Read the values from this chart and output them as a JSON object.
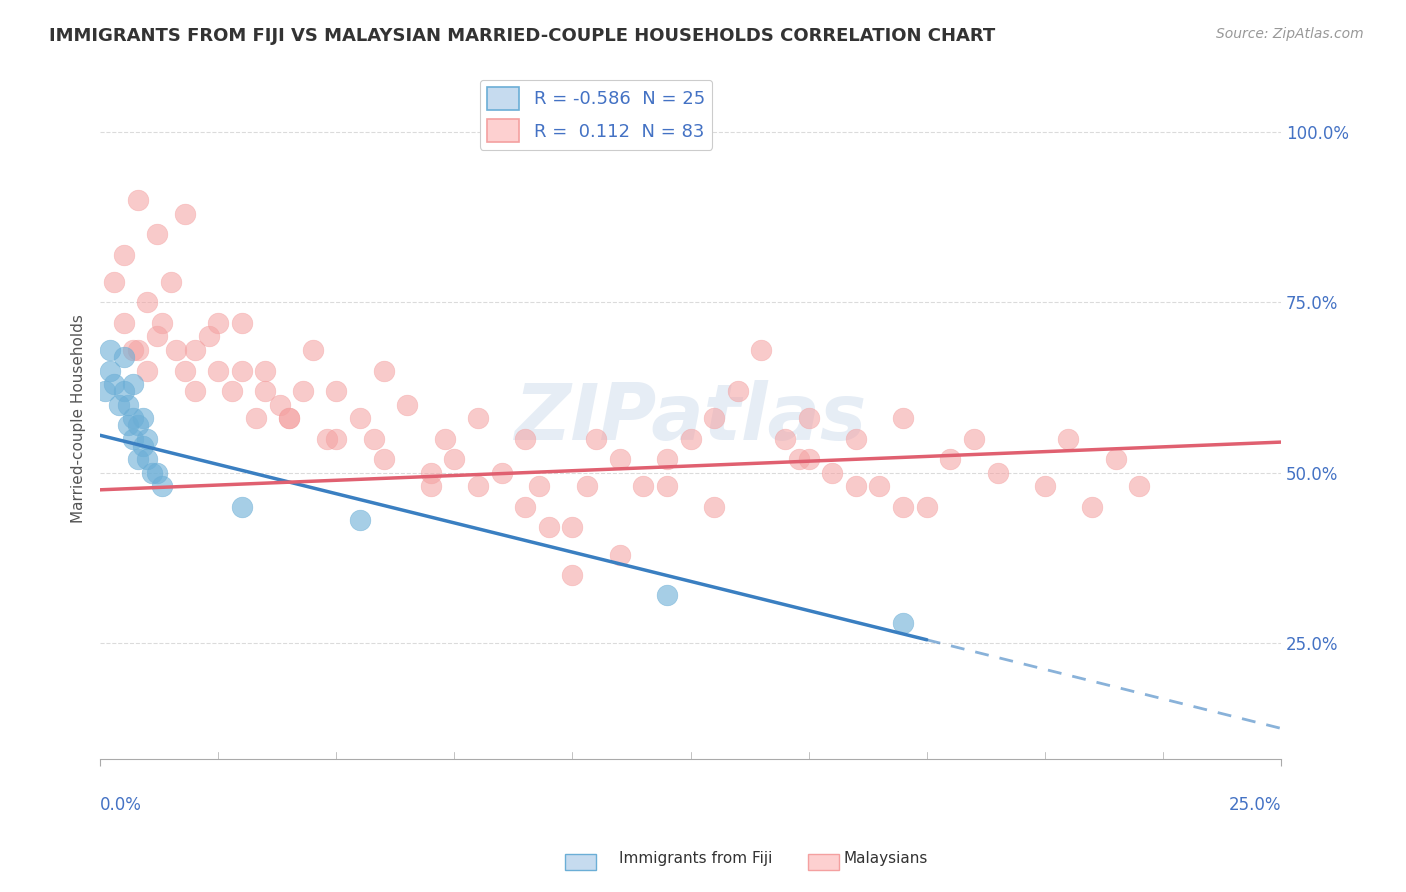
{
  "title": "IMMIGRANTS FROM FIJI VS MALAYSIAN MARRIED-COUPLE HOUSEHOLDS CORRELATION CHART",
  "source": "Source: ZipAtlas.com",
  "ylabel": "Married-couple Households",
  "ylabel_ticks": [
    "100.0%",
    "75.0%",
    "50.0%",
    "25.0%"
  ],
  "ylabel_tick_vals": [
    1.0,
    0.75,
    0.5,
    0.25
  ],
  "xlim": [
    0.0,
    0.25
  ],
  "ylim": [
    0.08,
    1.08
  ],
  "fiji_color": "#6baed6",
  "fiji_color_light": "#c6dbef",
  "malaysia_color": "#f4a0a0",
  "malaysia_color_light": "#fdd0d0",
  "trend_fiji_color": "#3a7fc1",
  "trend_malaysia_color": "#e06070",
  "watermark": "ZIPatlas",
  "background_color": "#ffffff",
  "grid_color": "#cccccc",
  "title_color": "#333333",
  "axis_color": "#4472c4",
  "tick_color": "#4472c4",
  "fiji_x": [
    0.001,
    0.002,
    0.002,
    0.003,
    0.004,
    0.005,
    0.005,
    0.006,
    0.006,
    0.007,
    0.007,
    0.007,
    0.008,
    0.008,
    0.009,
    0.009,
    0.01,
    0.01,
    0.011,
    0.012,
    0.013,
    0.03,
    0.055,
    0.12,
    0.17
  ],
  "fiji_y": [
    0.62,
    0.65,
    0.68,
    0.63,
    0.6,
    0.67,
    0.62,
    0.57,
    0.6,
    0.63,
    0.58,
    0.55,
    0.57,
    0.52,
    0.58,
    0.54,
    0.55,
    0.52,
    0.5,
    0.5,
    0.48,
    0.45,
    0.43,
    0.32,
    0.28
  ],
  "malaysia_x": [
    0.003,
    0.005,
    0.008,
    0.01,
    0.013,
    0.016,
    0.018,
    0.02,
    0.023,
    0.025,
    0.028,
    0.03,
    0.033,
    0.035,
    0.038,
    0.04,
    0.043,
    0.045,
    0.048,
    0.05,
    0.055,
    0.058,
    0.06,
    0.065,
    0.07,
    0.073,
    0.075,
    0.08,
    0.085,
    0.09,
    0.093,
    0.095,
    0.1,
    0.103,
    0.105,
    0.11,
    0.115,
    0.12,
    0.125,
    0.13,
    0.135,
    0.14,
    0.145,
    0.148,
    0.15,
    0.155,
    0.16,
    0.165,
    0.17,
    0.175,
    0.18,
    0.185,
    0.19,
    0.2,
    0.205,
    0.21,
    0.215,
    0.22,
    0.005,
    0.007,
    0.01,
    0.012,
    0.015,
    0.02,
    0.025,
    0.03,
    0.035,
    0.04,
    0.05,
    0.06,
    0.07,
    0.08,
    0.09,
    0.1,
    0.11,
    0.12,
    0.13,
    0.15,
    0.16,
    0.17,
    0.008,
    0.012,
    0.018
  ],
  "malaysia_y": [
    0.78,
    0.72,
    0.68,
    0.65,
    0.72,
    0.68,
    0.65,
    0.62,
    0.7,
    0.65,
    0.62,
    0.72,
    0.58,
    0.65,
    0.6,
    0.58,
    0.62,
    0.68,
    0.55,
    0.62,
    0.58,
    0.55,
    0.65,
    0.6,
    0.48,
    0.55,
    0.52,
    0.58,
    0.5,
    0.55,
    0.48,
    0.42,
    0.35,
    0.48,
    0.55,
    0.38,
    0.48,
    0.52,
    0.55,
    0.58,
    0.62,
    0.68,
    0.55,
    0.52,
    0.58,
    0.5,
    0.55,
    0.48,
    0.58,
    0.45,
    0.52,
    0.55,
    0.5,
    0.48,
    0.55,
    0.45,
    0.52,
    0.48,
    0.82,
    0.68,
    0.75,
    0.7,
    0.78,
    0.68,
    0.72,
    0.65,
    0.62,
    0.58,
    0.55,
    0.52,
    0.5,
    0.48,
    0.45,
    0.42,
    0.52,
    0.48,
    0.45,
    0.52,
    0.48,
    0.45,
    0.9,
    0.85,
    0.88
  ],
  "fiji_trend_x0": 0.0,
  "fiji_trend_y0": 0.555,
  "fiji_trend_x1": 0.175,
  "fiji_trend_y1": 0.255,
  "fiji_trend_dash_x0": 0.175,
  "fiji_trend_dash_y0": 0.255,
  "fiji_trend_dash_x1": 0.25,
  "fiji_trend_dash_y1": 0.125,
  "mal_trend_x0": 0.0,
  "mal_trend_y0": 0.475,
  "mal_trend_x1": 0.25,
  "mal_trend_y1": 0.545
}
